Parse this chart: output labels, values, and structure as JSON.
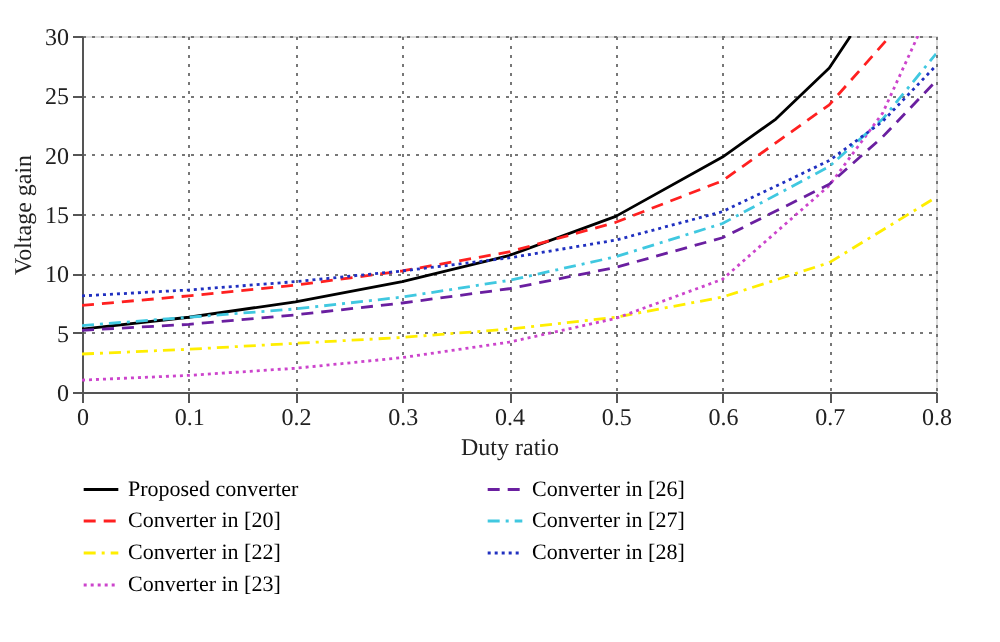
{
  "chart_data": {
    "type": "line",
    "xlabel": "Duty ratio",
    "ylabel": "Voltage gain",
    "xlim": [
      0,
      0.8
    ],
    "ylim": [
      0,
      30
    ],
    "xticks": [
      0,
      0.1,
      0.2,
      0.3,
      0.4,
      0.5,
      0.6,
      0.7,
      0.8
    ],
    "yticks": [
      0,
      5,
      10,
      15,
      20,
      25,
      30
    ],
    "grid": true,
    "legend": "bottom",
    "marker": "none",
    "series": [
      {
        "name": "Proposed converter",
        "color": "#000000",
        "line_style": "solid",
        "x": [
          0,
          0.1,
          0.2,
          0.3,
          0.4,
          0.5,
          0.6,
          0.65,
          0.7,
          0.72
        ],
        "values": [
          5.3,
          6.3,
          7.6,
          9.3,
          11.5,
          14.8,
          19.8,
          23,
          27.3,
          30
        ]
      },
      {
        "name": "Converter in [20]",
        "color": "#ff2020",
        "line_style": "dashed",
        "x": [
          0,
          0.1,
          0.2,
          0.3,
          0.4,
          0.5,
          0.6,
          0.7,
          0.757
        ],
        "values": [
          7.3,
          8.1,
          9.0,
          10.2,
          11.8,
          14.3,
          17.8,
          24.2,
          30
        ]
      },
      {
        "name": "Converter in [22]",
        "color": "#ffee00",
        "line_style": "dashdot",
        "x": [
          0,
          0.1,
          0.2,
          0.3,
          0.4,
          0.5,
          0.6,
          0.7,
          0.8
        ],
        "values": [
          3.2,
          3.6,
          4.1,
          4.6,
          5.3,
          6.3,
          8.0,
          10.9,
          16.4
        ]
      },
      {
        "name": "Converter in [23]",
        "color": "#cc44cc",
        "line_style": "dotted",
        "x": [
          0,
          0.1,
          0.2,
          0.3,
          0.4,
          0.5,
          0.6,
          0.7,
          0.75,
          0.783
        ],
        "values": [
          1.0,
          1.4,
          2.0,
          2.9,
          4.2,
          6.2,
          9.5,
          17.4,
          23.5,
          30
        ]
      },
      {
        "name": "Converter in [26]",
        "color": "#6a1fa0",
        "line_style": "dashed",
        "x": [
          0,
          0.1,
          0.2,
          0.3,
          0.4,
          0.5,
          0.6,
          0.7,
          0.75,
          0.8
        ],
        "values": [
          5.2,
          5.7,
          6.5,
          7.5,
          8.7,
          10.5,
          13.0,
          17.5,
          21.5,
          26.2
        ]
      },
      {
        "name": "Converter in [27]",
        "color": "#40c8e0",
        "line_style": "dashdot",
        "x": [
          0,
          0.1,
          0.2,
          0.3,
          0.4,
          0.5,
          0.6,
          0.7,
          0.75,
          0.8
        ],
        "values": [
          5.6,
          6.3,
          7.0,
          8.0,
          9.4,
          11.4,
          14.2,
          19.0,
          23,
          28.5
        ]
      },
      {
        "name": "Converter in [28]",
        "color": "#2030c0",
        "line_style": "dotted",
        "x": [
          0,
          0.1,
          0.2,
          0.3,
          0.4,
          0.5,
          0.6,
          0.7,
          0.75,
          0.8
        ],
        "values": [
          8.1,
          8.6,
          9.3,
          10.2,
          11.3,
          12.8,
          15.2,
          19.5,
          22.8,
          27.5
        ]
      }
    ]
  }
}
